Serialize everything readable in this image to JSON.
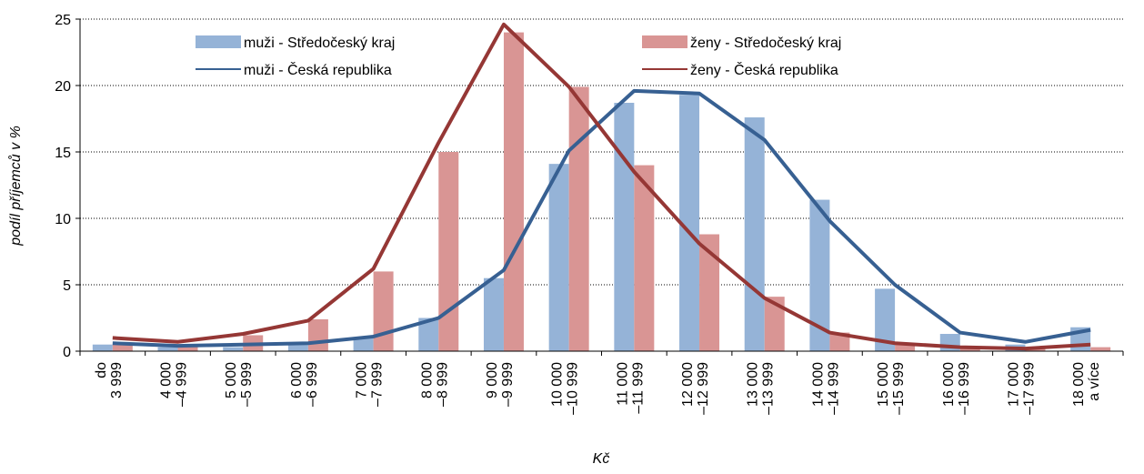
{
  "chart_data": {
    "type": "bar",
    "y_label": "podíl příjemců v %",
    "x_label": "Kč",
    "categories": [
      [
        "do",
        "3 999"
      ],
      [
        "4 000",
        "–4 999"
      ],
      [
        "5 000",
        "–5 999"
      ],
      [
        "6 000",
        "–6 999"
      ],
      [
        "7 000",
        "–7 999"
      ],
      [
        "8 000",
        "–8 999"
      ],
      [
        "9 000",
        "–9 999"
      ],
      [
        "10 000",
        "–10 999"
      ],
      [
        "11 000",
        "–11 999"
      ],
      [
        "12 000",
        "–12 999"
      ],
      [
        "13 000",
        "–13 999"
      ],
      [
        "14 000",
        "–14 999"
      ],
      [
        "15 000",
        "–15 999"
      ],
      [
        "16 000",
        "–16 999"
      ],
      [
        "17 000",
        "–17 999"
      ],
      [
        "18 000",
        "a více"
      ]
    ],
    "series": [
      {
        "name": "muži - Středočeský kraj",
        "type": "bar",
        "color": "#95b3d7",
        "values": [
          0.5,
          0.3,
          0.3,
          0.5,
          1.0,
          2.5,
          5.5,
          14.1,
          18.7,
          19.3,
          17.6,
          11.4,
          4.7,
          1.3,
          0.5,
          1.8
        ]
      },
      {
        "name": "ženy - Středočeský kraj",
        "type": "bar",
        "color": "#d99594",
        "values": [
          0.5,
          0.5,
          1.2,
          2.4,
          6.0,
          15.0,
          24.0,
          19.9,
          14.0,
          8.8,
          4.1,
          1.4,
          0.5,
          0.2,
          0.2,
          0.3
        ]
      },
      {
        "name": "muži - Česká republika",
        "type": "line",
        "color": "#376092",
        "values": [
          0.6,
          0.4,
          0.5,
          0.6,
          1.1,
          2.5,
          6.1,
          15.1,
          19.6,
          19.4,
          15.9,
          9.8,
          5.0,
          1.4,
          0.7,
          1.6
        ]
      },
      {
        "name": "ženy - Česká republika",
        "type": "line",
        "color": "#953735",
        "values": [
          1.0,
          0.7,
          1.3,
          2.3,
          6.2,
          15.7,
          24.6,
          19.9,
          13.5,
          8.1,
          4.0,
          1.4,
          0.6,
          0.3,
          0.2,
          0.5
        ]
      }
    ],
    "ylim": [
      0,
      25
    ],
    "yticks": [
      0,
      5,
      10,
      15,
      20,
      25
    ],
    "grid": true,
    "legend": "top"
  }
}
